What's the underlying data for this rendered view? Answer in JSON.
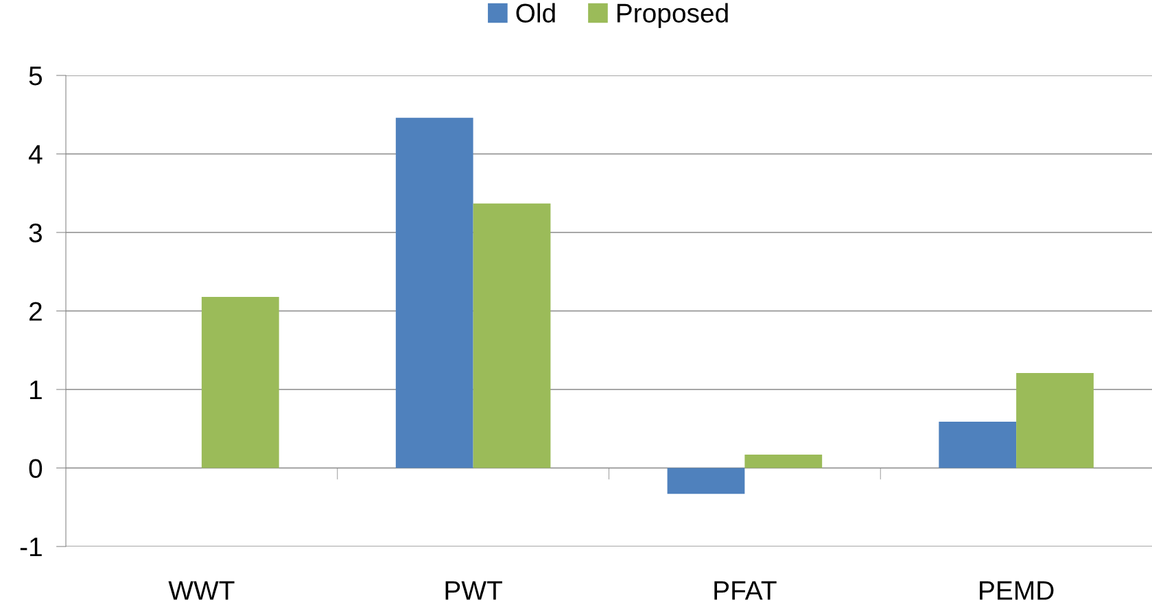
{
  "chart_data": {
    "type": "bar",
    "categories": [
      "WWT",
      "PWT",
      "PFAT",
      "PEMD"
    ],
    "series": [
      {
        "name": "Old",
        "color": "#4f81bd",
        "values": [
          0,
          4.46,
          -0.33,
          0.59
        ]
      },
      {
        "name": "Proposed",
        "color": "#9bbb59",
        "values": [
          2.18,
          3.37,
          0.17,
          1.21
        ]
      }
    ],
    "ylim": [
      -1,
      5
    ],
    "yticks": [
      {
        "value": -1,
        "label": "-1"
      },
      0,
      1,
      2,
      3,
      4,
      5
    ],
    "grid": "y",
    "legend": "top"
  }
}
